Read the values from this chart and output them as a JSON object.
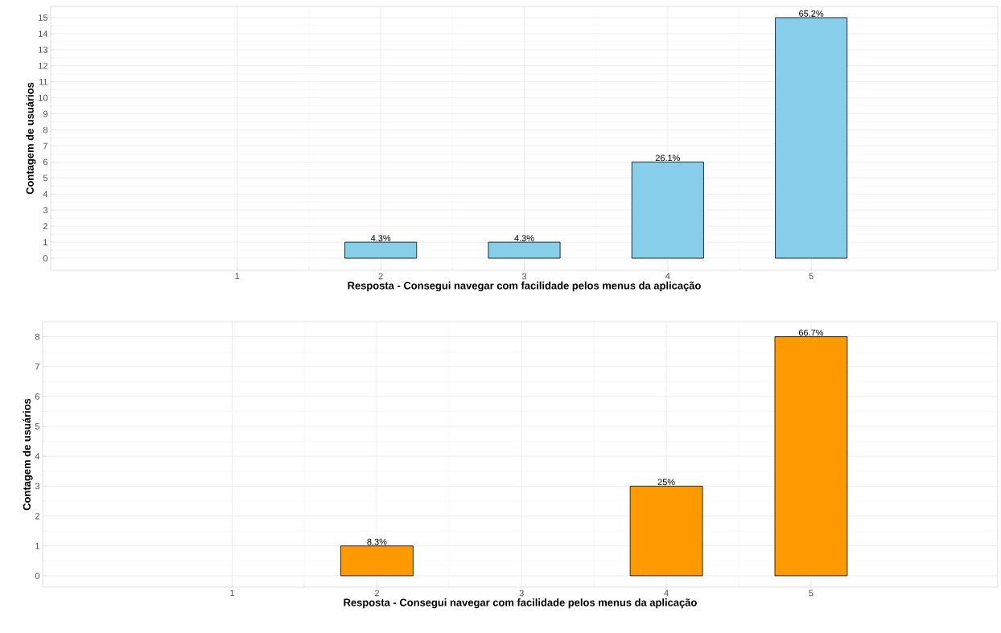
{
  "chart_data": [
    {
      "type": "bar",
      "xlabel": "Resposta - Consegui navegar com facilidade pelos menus da aplicação",
      "ylabel": "Contagem de usuários",
      "x": [
        2,
        3,
        4,
        5
      ],
      "values": [
        1,
        1,
        6,
        15
      ],
      "color": "#87ceeb",
      "annotations": [
        {
          "text": "4.3%",
          "x": 2,
          "y": 1
        },
        {
          "text": "4.3%",
          "x": 3,
          "y": 1
        },
        {
          "text": "26.1%",
          "x": 4,
          "y": 6
        },
        {
          "text": "65.2%",
          "x": 5,
          "y": 15
        }
      ],
      "xlim": [
        -0.3,
        6.3
      ],
      "xticks": [
        1,
        2,
        3,
        4,
        5
      ],
      "ylim": [
        -0.75,
        15.7
      ],
      "yticks": [
        0,
        1,
        2,
        3,
        4,
        5,
        6,
        7,
        8,
        9,
        10,
        11,
        12,
        13,
        14,
        15
      ],
      "grid": true
    },
    {
      "type": "bar",
      "xlabel": "Resposta - Consegui navegar com facilidade pelos menus da aplicação",
      "ylabel": "Contagem de usuários",
      "x": [
        2,
        4,
        5
      ],
      "values": [
        1,
        3,
        8
      ],
      "color": "#ff9900",
      "annotations": [
        {
          "text": "8.3%",
          "x": 2,
          "y": 1
        },
        {
          "text": "25%",
          "x": 4,
          "y": 3
        },
        {
          "text": "66.7%",
          "x": 5,
          "y": 8
        }
      ],
      "xlim": [
        -0.31,
        6.29
      ],
      "xticks": [
        1,
        2,
        3,
        4,
        5
      ],
      "ylim": [
        -0.38,
        8.5
      ],
      "yticks": [
        0,
        1,
        2,
        3,
        4,
        5,
        6,
        7,
        8
      ],
      "grid": true
    }
  ]
}
